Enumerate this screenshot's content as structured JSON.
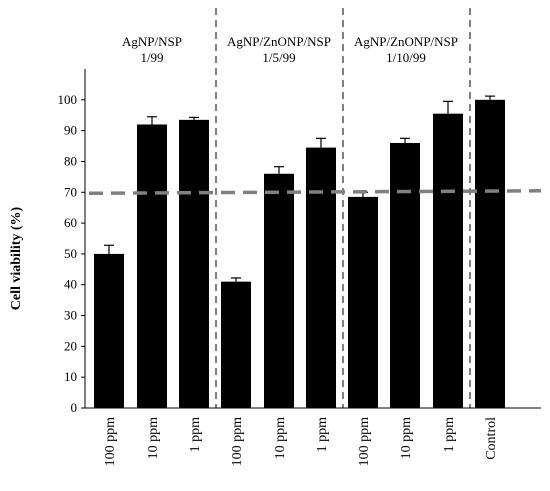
{
  "chart_data": {
    "type": "bar",
    "ylabel": "Cell viability (%)",
    "xlabel": "",
    "ylim": [
      0,
      110
    ],
    "yticks": [
      0,
      10,
      20,
      30,
      40,
      50,
      60,
      70,
      80,
      90,
      100
    ],
    "categories": [
      "100 ppm",
      "10 ppm",
      "1 ppm",
      "100 ppm",
      "10 ppm",
      "1 ppm",
      "100 ppm",
      "10 ppm",
      "1 ppm",
      "Control"
    ],
    "values": [
      50,
      92,
      93.5,
      41,
      76,
      84.5,
      68.5,
      86,
      95.5,
      100
    ],
    "errors": [
      2.8,
      2.5,
      0.8,
      1.2,
      2.3,
      3.0,
      1.5,
      1.5,
      4.0,
      1.2
    ],
    "groups": [
      {
        "label_line1": "AgNP/NSP",
        "label_line2": "1/99"
      },
      {
        "label_line1": "AgNP/ZnONP/NSP",
        "label_line2": "1/5/99"
      },
      {
        "label_line1": "AgNP/ZnONP/NSP",
        "label_line2": "1/10/99"
      }
    ],
    "threshold": 70,
    "bar_color": "#000000",
    "threshold_color": "#808080",
    "grid": false,
    "legend": "none"
  }
}
